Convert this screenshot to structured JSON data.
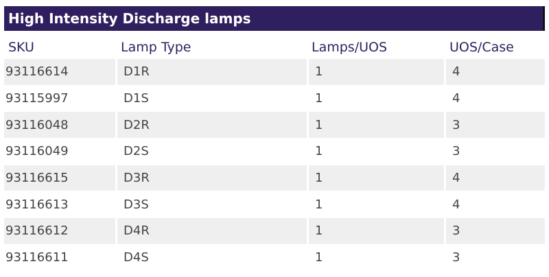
{
  "title": "High Intensity Discharge lamps",
  "columns": [
    "SKU",
    "Lamp Type",
    "Lamps/UOS",
    "UOS/Case"
  ],
  "rows": [
    [
      "93116614",
      "D1R",
      "1",
      "4"
    ],
    [
      "93115997",
      "D1S",
      "1",
      "4"
    ],
    [
      "93116048",
      "D2R",
      "1",
      "3"
    ],
    [
      "93116049",
      "D2S",
      "1",
      "3"
    ],
    [
      "93116615",
      "D3R",
      "1",
      "4"
    ],
    [
      "93116613",
      "D3S",
      "1",
      "4"
    ],
    [
      "93116612",
      "D4R",
      "1",
      "3"
    ],
    [
      "93116611",
      "D4S",
      "1",
      "3"
    ]
  ],
  "colors": {
    "title_bg": "#2f1f5e",
    "header_text": "#2f1f5e",
    "row_shade": "#efefef",
    "body_text": "#444444"
  }
}
